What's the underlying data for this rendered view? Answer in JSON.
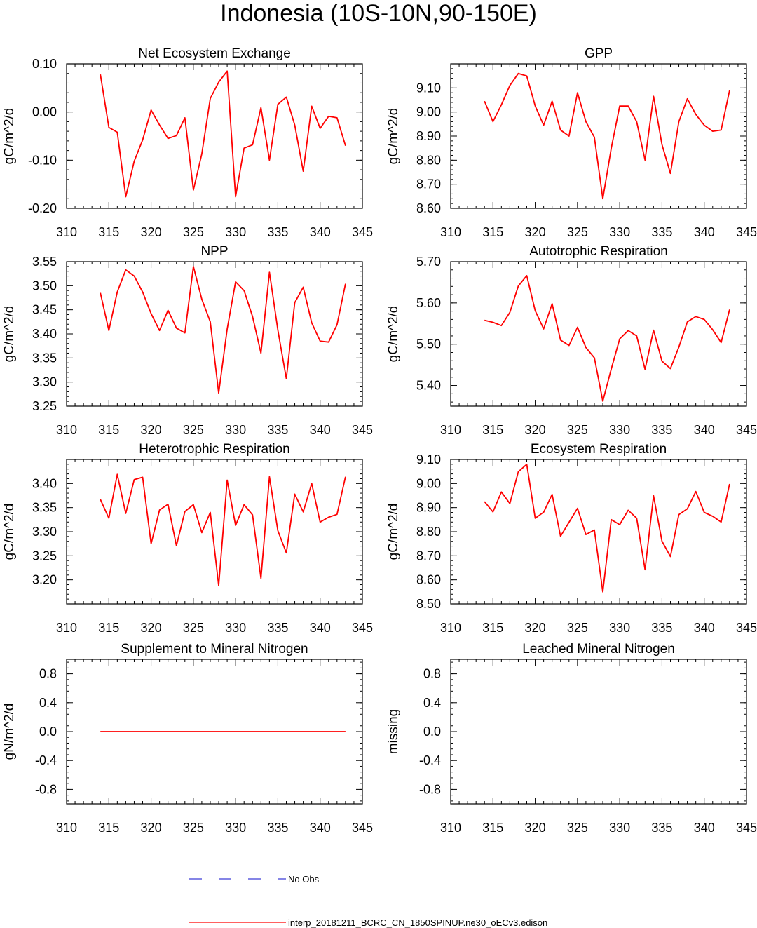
{
  "title": "Indonesia (10S-10N,90-150E)",
  "colors": {
    "series": "#ff0000",
    "noobs": "#3c3cd8",
    "axis": "#000000"
  },
  "legend": [
    {
      "label": "No Obs",
      "color": "#3c3cd8",
      "style": "dashed"
    },
    {
      "label": "interp_20181211_BCRC_CN_1850SPINUP.ne30_oECv3.edison",
      "color": "#ff0000",
      "style": "solid"
    }
  ],
  "chart_data": [
    {
      "type": "line",
      "title": "Net Ecosystem Exchange",
      "ylabel": "gC/m^2/d",
      "xlim": [
        310,
        345
      ],
      "xticks": [
        310,
        315,
        320,
        325,
        330,
        335,
        340,
        345
      ],
      "xtick_labels": [
        "310",
        "315",
        "320",
        "325",
        "330",
        "335",
        "340",
        "345"
      ],
      "ylim": [
        -0.2,
        0.1
      ],
      "yticks": [
        -0.2,
        -0.1,
        0.0,
        0.1
      ],
      "ytick_labels": [
        "-0.20",
        "-0.10",
        "0.00",
        "0.10"
      ],
      "x": [
        314,
        315,
        316,
        317,
        318,
        319,
        320,
        321,
        322,
        323,
        324,
        325,
        326,
        327,
        328,
        329,
        330,
        331,
        332,
        333,
        334,
        335,
        336,
        337,
        338,
        339,
        340,
        341,
        342,
        343
      ],
      "series": [
        {
          "color": "#ff0000",
          "values": [
            0.078,
            -0.032,
            -0.042,
            -0.176,
            -0.102,
            -0.058,
            0.004,
            -0.027,
            -0.055,
            -0.049,
            -0.012,
            -0.162,
            -0.087,
            0.028,
            0.062,
            0.085,
            -0.176,
            -0.075,
            -0.068,
            0.009,
            -0.1,
            0.016,
            0.031,
            -0.027,
            -0.123,
            0.012,
            -0.034,
            -0.009,
            -0.012,
            -0.07
          ]
        }
      ]
    },
    {
      "type": "line",
      "title": "GPP",
      "ylabel": "gC/m^2/d",
      "xlim": [
        310,
        345
      ],
      "xticks": [
        310,
        315,
        320,
        325,
        330,
        335,
        340,
        345
      ],
      "xtick_labels": [
        "310",
        "315",
        "320",
        "325",
        "330",
        "335",
        "340",
        "345"
      ],
      "ylim": [
        8.6,
        9.2
      ],
      "yticks": [
        8.6,
        8.7,
        8.8,
        8.9,
        9.0,
        9.1
      ],
      "ytick_labels": [
        "8.60",
        "8.70",
        "8.80",
        "8.90",
        "9.00",
        "9.10"
      ],
      "x": [
        314,
        315,
        316,
        317,
        318,
        319,
        320,
        321,
        322,
        323,
        324,
        325,
        326,
        327,
        328,
        329,
        330,
        331,
        332,
        333,
        334,
        335,
        336,
        337,
        338,
        339,
        340,
        341,
        342,
        343
      ],
      "series": [
        {
          "color": "#ff0000",
          "values": [
            9.045,
            8.96,
            9.03,
            9.11,
            9.16,
            9.15,
            9.025,
            8.945,
            9.045,
            8.925,
            8.9,
            9.08,
            8.96,
            8.895,
            8.64,
            8.85,
            9.025,
            9.025,
            8.96,
            8.8,
            9.065,
            8.865,
            8.745,
            8.96,
            9.055,
            8.99,
            8.945,
            8.92,
            8.925,
            9.09
          ]
        }
      ]
    },
    {
      "type": "line",
      "title": "NPP",
      "ylabel": "gC/m^2/d",
      "xlim": [
        310,
        345
      ],
      "xticks": [
        310,
        315,
        320,
        325,
        330,
        335,
        340,
        345
      ],
      "xtick_labels": [
        "310",
        "315",
        "320",
        "325",
        "330",
        "335",
        "340",
        "345"
      ],
      "ylim": [
        3.25,
        3.55
      ],
      "yticks": [
        3.25,
        3.3,
        3.35,
        3.4,
        3.45,
        3.5,
        3.55
      ],
      "ytick_labels": [
        "3.25",
        "3.30",
        "3.35",
        "3.40",
        "3.45",
        "3.50",
        "3.55"
      ],
      "x": [
        314,
        315,
        316,
        317,
        318,
        319,
        320,
        321,
        322,
        323,
        324,
        325,
        326,
        327,
        328,
        329,
        330,
        331,
        332,
        333,
        334,
        335,
        336,
        337,
        338,
        339,
        340,
        341,
        342,
        343
      ],
      "series": [
        {
          "color": "#ff0000",
          "values": [
            3.485,
            3.407,
            3.487,
            3.533,
            3.52,
            3.487,
            3.442,
            3.407,
            3.449,
            3.412,
            3.402,
            3.54,
            3.472,
            3.425,
            3.277,
            3.41,
            3.508,
            3.49,
            3.436,
            3.36,
            3.528,
            3.408,
            3.307,
            3.465,
            3.497,
            3.423,
            3.385,
            3.383,
            3.419,
            3.504
          ]
        }
      ]
    },
    {
      "type": "line",
      "title": "Autotrophic Respiration",
      "ylabel": "gC/m^2/d",
      "xlim": [
        310,
        345
      ],
      "xticks": [
        310,
        315,
        320,
        325,
        330,
        335,
        340,
        345
      ],
      "xtick_labels": [
        "310",
        "315",
        "320",
        "325",
        "330",
        "335",
        "340",
        "345"
      ],
      "ylim": [
        5.35,
        5.7
      ],
      "yticks": [
        5.4,
        5.5,
        5.6,
        5.7
      ],
      "ytick_labels": [
        "5.40",
        "5.50",
        "5.60",
        "5.70"
      ],
      "x": [
        314,
        315,
        316,
        317,
        318,
        319,
        320,
        321,
        322,
        323,
        324,
        325,
        326,
        327,
        328,
        329,
        330,
        331,
        332,
        333,
        334,
        335,
        336,
        337,
        338,
        339,
        340,
        341,
        342,
        343
      ],
      "series": [
        {
          "color": "#ff0000",
          "values": [
            5.558,
            5.553,
            5.545,
            5.577,
            5.641,
            5.666,
            5.581,
            5.537,
            5.598,
            5.51,
            5.497,
            5.541,
            5.492,
            5.467,
            5.362,
            5.44,
            5.513,
            5.533,
            5.52,
            5.439,
            5.534,
            5.459,
            5.441,
            5.493,
            5.554,
            5.567,
            5.56,
            5.535,
            5.504,
            5.584
          ]
        }
      ]
    },
    {
      "type": "line",
      "title": "Heterotrophic Respiration",
      "ylabel": "gC/m^2/d",
      "xlim": [
        310,
        345
      ],
      "xticks": [
        310,
        315,
        320,
        325,
        330,
        335,
        340,
        345
      ],
      "xtick_labels": [
        "310",
        "315",
        "320",
        "325",
        "330",
        "335",
        "340",
        "345"
      ],
      "ylim": [
        3.15,
        3.45
      ],
      "yticks": [
        3.2,
        3.25,
        3.3,
        3.35,
        3.4
      ],
      "ytick_labels": [
        "3.20",
        "3.25",
        "3.30",
        "3.35",
        "3.40"
      ],
      "x": [
        314,
        315,
        316,
        317,
        318,
        319,
        320,
        321,
        322,
        323,
        324,
        325,
        326,
        327,
        328,
        329,
        330,
        331,
        332,
        333,
        334,
        335,
        336,
        337,
        338,
        339,
        340,
        341,
        342,
        343
      ],
      "series": [
        {
          "color": "#ff0000",
          "values": [
            3.367,
            3.328,
            3.419,
            3.338,
            3.408,
            3.413,
            3.275,
            3.345,
            3.357,
            3.271,
            3.342,
            3.356,
            3.298,
            3.34,
            3.188,
            3.407,
            3.313,
            3.356,
            3.335,
            3.203,
            3.414,
            3.302,
            3.256,
            3.378,
            3.341,
            3.4,
            3.32,
            3.33,
            3.336,
            3.414
          ]
        }
      ]
    },
    {
      "type": "line",
      "title": "Ecosystem Respiration",
      "ylabel": "gC/m^2/d",
      "xlim": [
        310,
        345
      ],
      "xticks": [
        310,
        315,
        320,
        325,
        330,
        335,
        340,
        345
      ],
      "xtick_labels": [
        "310",
        "315",
        "320",
        "325",
        "330",
        "335",
        "340",
        "345"
      ],
      "ylim": [
        8.5,
        9.1
      ],
      "yticks": [
        8.5,
        8.6,
        8.7,
        8.8,
        8.9,
        9.0,
        9.1
      ],
      "ytick_labels": [
        "8.50",
        "8.60",
        "8.70",
        "8.80",
        "8.90",
        "9.00",
        "9.10"
      ],
      "x": [
        314,
        315,
        316,
        317,
        318,
        319,
        320,
        321,
        322,
        323,
        324,
        325,
        326,
        327,
        328,
        329,
        330,
        331,
        332,
        333,
        334,
        335,
        336,
        337,
        338,
        339,
        340,
        341,
        342,
        343
      ],
      "series": [
        {
          "color": "#ff0000",
          "values": [
            8.925,
            8.882,
            8.965,
            8.917,
            9.049,
            9.08,
            8.856,
            8.881,
            8.955,
            8.781,
            8.839,
            8.897,
            8.788,
            8.807,
            8.55,
            8.85,
            8.829,
            8.889,
            8.856,
            8.642,
            8.949,
            8.761,
            8.697,
            8.871,
            8.895,
            8.967,
            8.88,
            8.864,
            8.84,
            8.998
          ]
        }
      ]
    },
    {
      "type": "line",
      "title": "Supplement to Mineral Nitrogen",
      "ylabel": "gN/m^2/d",
      "xlim": [
        310,
        345
      ],
      "xticks": [
        310,
        315,
        320,
        325,
        330,
        335,
        340,
        345
      ],
      "xtick_labels": [
        "310",
        "315",
        "320",
        "325",
        "330",
        "335",
        "340",
        "345"
      ],
      "ylim": [
        -1.0,
        1.0
      ],
      "yticks": [
        -0.8,
        -0.4,
        0.0,
        0.4,
        0.8
      ],
      "ytick_labels": [
        "-0.8",
        "-0.4",
        "0.0",
        "0.4",
        "0.8"
      ],
      "x": [
        314,
        315,
        316,
        317,
        318,
        319,
        320,
        321,
        322,
        323,
        324,
        325,
        326,
        327,
        328,
        329,
        330,
        331,
        332,
        333,
        334,
        335,
        336,
        337,
        338,
        339,
        340,
        341,
        342,
        343
      ],
      "series": [
        {
          "color": "#ff0000",
          "values": [
            0,
            0,
            0,
            0,
            0,
            0,
            0,
            0,
            0,
            0,
            0,
            0,
            0,
            0,
            0,
            0,
            0,
            0,
            0,
            0,
            0,
            0,
            0,
            0,
            0,
            0,
            0,
            0,
            0,
            0
          ]
        }
      ]
    },
    {
      "type": "line",
      "title": "Leached Mineral Nitrogen",
      "ylabel": "missing",
      "xlim": [
        310,
        345
      ],
      "xticks": [
        310,
        315,
        320,
        325,
        330,
        335,
        340,
        345
      ],
      "xtick_labels": [
        "310",
        "315",
        "320",
        "325",
        "330",
        "335",
        "340",
        "345"
      ],
      "ylim": [
        -1.0,
        1.0
      ],
      "yticks": [
        -0.8,
        -0.4,
        0.0,
        0.4,
        0.8
      ],
      "ytick_labels": [
        "-0.8",
        "-0.4",
        "0.0",
        "0.4",
        "0.8"
      ],
      "x": [],
      "series": []
    }
  ]
}
